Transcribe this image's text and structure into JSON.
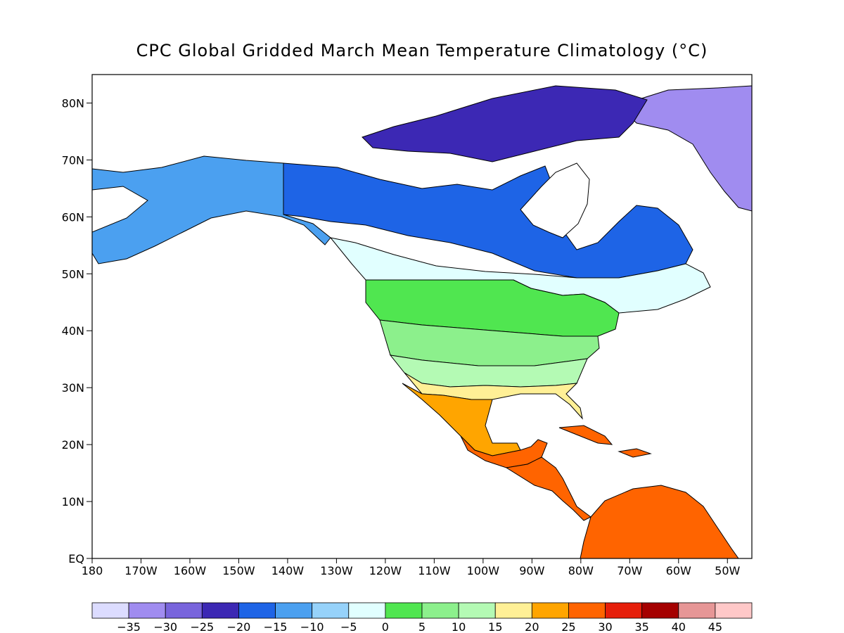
{
  "title": "CPC Global Gridded March Mean Temperature Climatology (°C)",
  "map": {
    "projection": "latitude-longitude",
    "lon_range": [
      "180",
      "45W"
    ],
    "lat_range": [
      "EQ",
      "85N"
    ],
    "lat_ticks": [
      "EQ",
      "10N",
      "20N",
      "30N",
      "40N",
      "50N",
      "60N",
      "70N",
      "80N"
    ],
    "lon_ticks": [
      "180",
      "170W",
      "160W",
      "150W",
      "140W",
      "130W",
      "120W",
      "110W",
      "100W",
      "90W",
      "80W",
      "70W",
      "60W",
      "50W"
    ],
    "regions": [
      {
        "name": "greenland",
        "band": "-35"
      },
      {
        "name": "canadian-arctic-archipelago",
        "band": "-25"
      },
      {
        "name": "northern-canada",
        "band": "-20"
      },
      {
        "name": "alaska",
        "band": "-15"
      },
      {
        "name": "southern-canada",
        "band": "-5"
      },
      {
        "name": "northern-usa",
        "band": "0"
      },
      {
        "name": "central-usa",
        "band": "5"
      },
      {
        "name": "southern-usa",
        "band": "10"
      },
      {
        "name": "gulf-coast",
        "band": "15"
      },
      {
        "name": "mexico",
        "band": "20"
      },
      {
        "name": "southern-mexico",
        "band": "25"
      },
      {
        "name": "central-america",
        "band": "25"
      },
      {
        "name": "caribbean-islands",
        "band": "25"
      },
      {
        "name": "northern-south-america",
        "band": "25"
      },
      {
        "name": "hudson-bay",
        "band": "missing"
      }
    ]
  },
  "colorbar": {
    "colors": [
      "#dcdcff",
      "#a08cf0",
      "#7864dc",
      "#3c28b4",
      "#1e64e6",
      "#4ba0f0",
      "#96d2fa",
      "#e1ffff",
      "#50e650",
      "#8cf08c",
      "#b4fab4",
      "#fff096",
      "#ffa500",
      "#ff6400",
      "#e61e0a",
      "#a50000",
      "#e69696",
      "#ffc8c8"
    ],
    "labels": [
      "-35",
      "-30",
      "-25",
      "-20",
      "-15",
      "-10",
      "-5",
      "0",
      "5",
      "10",
      "15",
      "20",
      "25",
      "30",
      "35",
      "40",
      "45"
    ]
  }
}
